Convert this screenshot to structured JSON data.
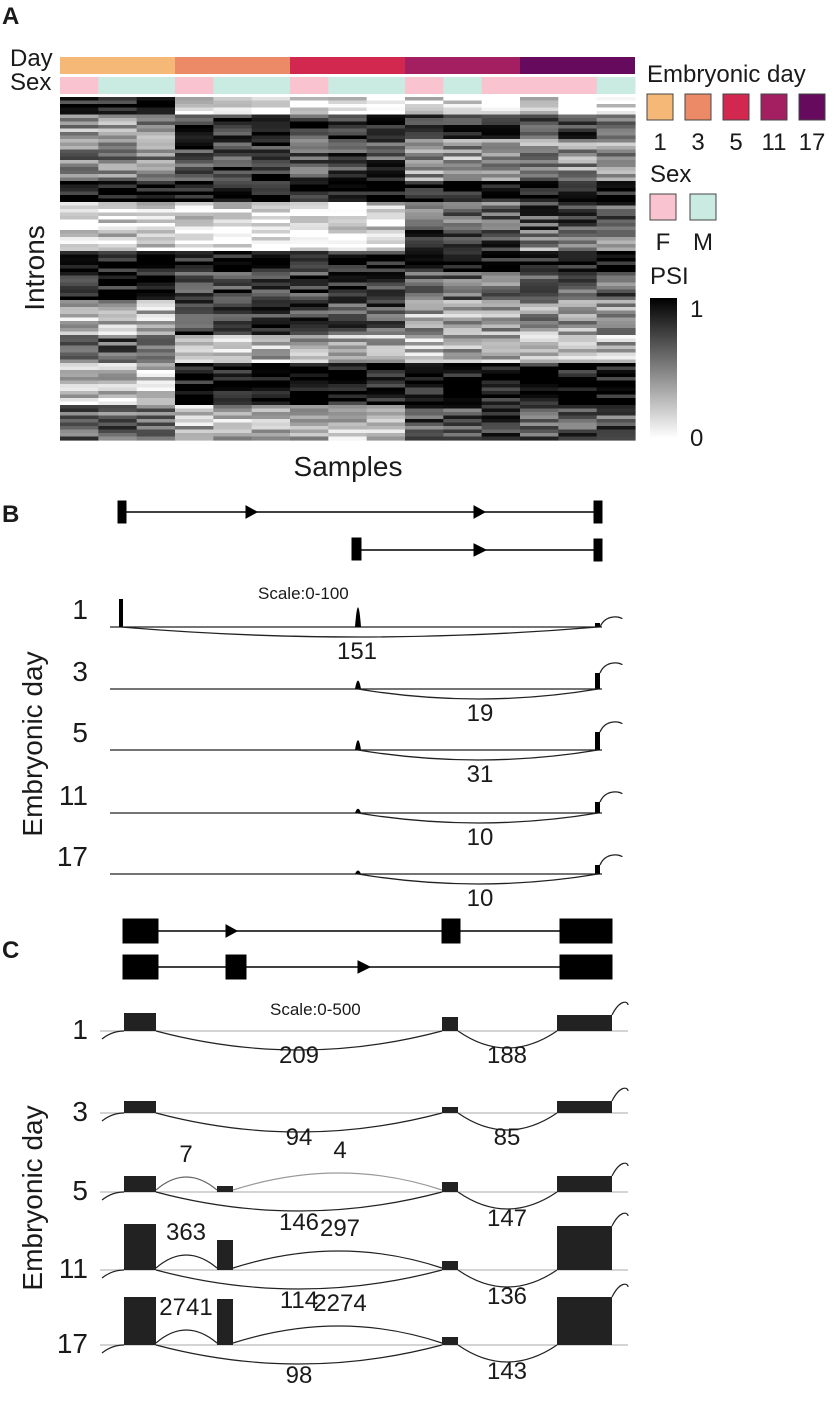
{
  "panels": {
    "a": {
      "letter": "A",
      "track_labels": {
        "day": "Day",
        "sex": "Sex"
      },
      "y_label": "Introns",
      "x_label": "Samples",
      "legend": {
        "day_title": "Embryonic day",
        "days": [
          {
            "label": "1",
            "color": "#f6b877"
          },
          {
            "label": "3",
            "color": "#ec8a68"
          },
          {
            "label": "5",
            "color": "#d2284f"
          },
          {
            "label": "11",
            "color": "#a31f62"
          },
          {
            "label": "17",
            "color": "#650a5d"
          }
        ],
        "sex_title": "Sex",
        "sexes": [
          {
            "label": "F",
            "color": "#f9c3cf"
          },
          {
            "label": "M",
            "color": "#c9ebe1"
          }
        ],
        "psi_title": "PSI",
        "psi_max": "1",
        "psi_min": "0"
      },
      "sample_sex": [
        "F",
        "M",
        "M",
        "F",
        "M",
        "M",
        "F",
        "M",
        "M",
        "F",
        "M",
        "F",
        "F",
        "F",
        "M"
      ]
    },
    "b": {
      "letter": "B",
      "y_label": "Embryonic day",
      "scale": "Scale:0-100",
      "tracks": [
        {
          "day": "1",
          "counts": [
            "151"
          ]
        },
        {
          "day": "3",
          "counts": [
            "19"
          ]
        },
        {
          "day": "5",
          "counts": [
            "31"
          ]
        },
        {
          "day": "11",
          "counts": [
            "10"
          ]
        },
        {
          "day": "17",
          "counts": [
            "10"
          ]
        }
      ]
    },
    "c": {
      "letter": "C",
      "y_label": "Embryonic day",
      "scale": "Scale:0-500",
      "tracks": [
        {
          "day": "1",
          "counts": [
            "209",
            "188"
          ]
        },
        {
          "day": "3",
          "counts": [
            "94",
            "85"
          ]
        },
        {
          "day": "5",
          "counts": [
            "7",
            "4",
            "146",
            "147"
          ]
        },
        {
          "day": "11",
          "counts": [
            "363",
            "297",
            "114",
            "136"
          ]
        },
        {
          "day": "17",
          "counts": [
            "2741",
            "2274",
            "98",
            "143"
          ]
        }
      ]
    }
  }
}
